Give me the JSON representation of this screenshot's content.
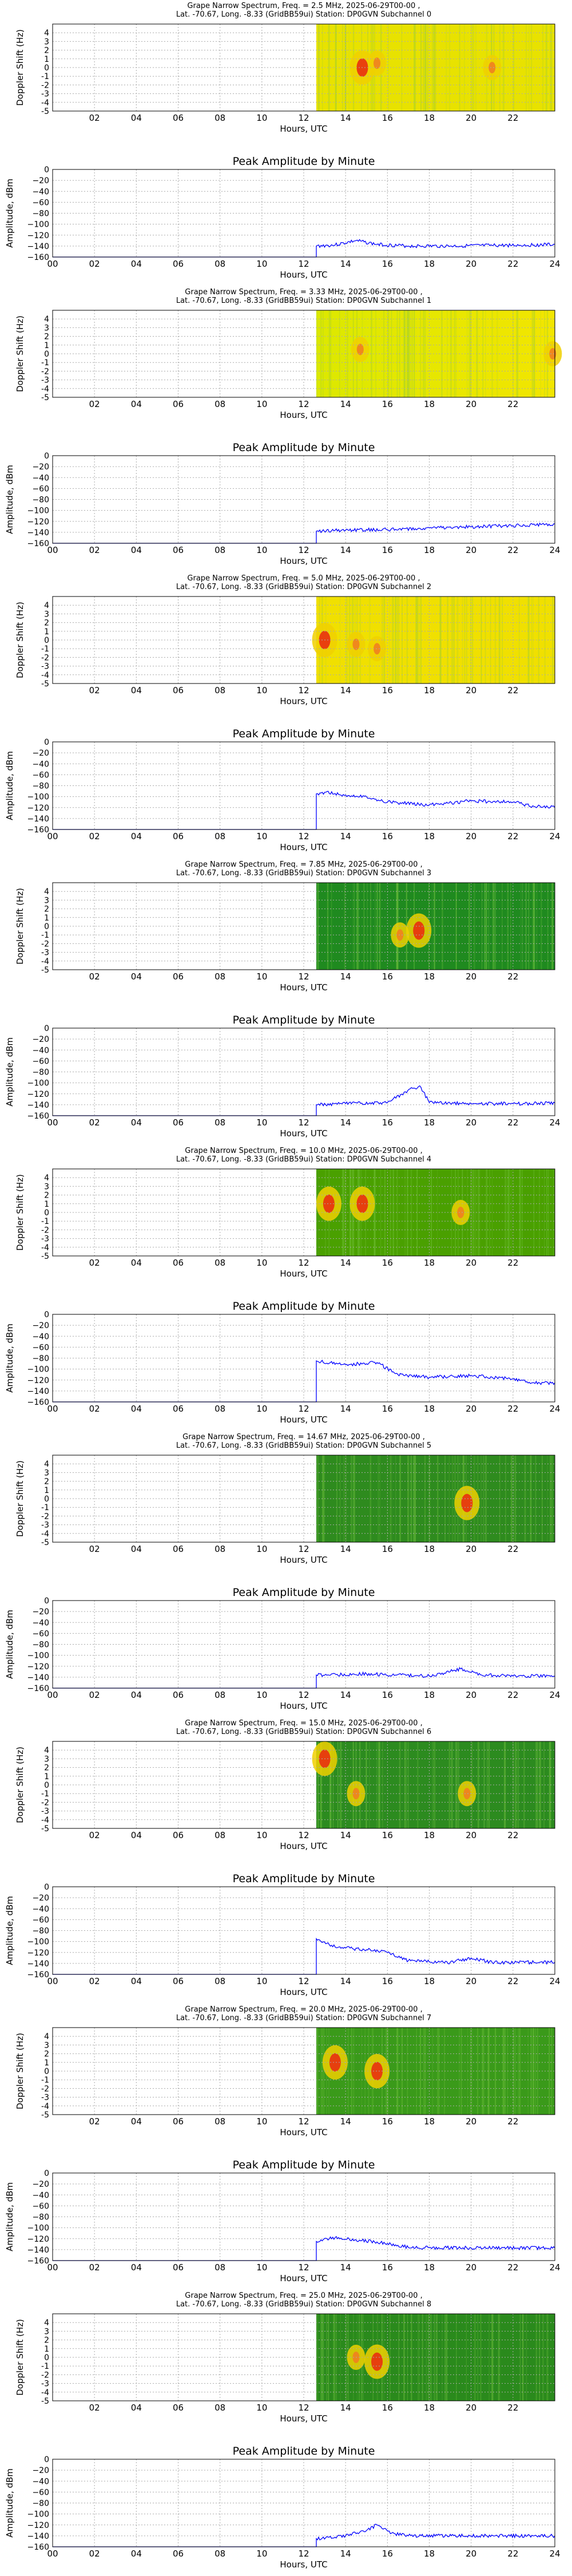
{
  "chart_data": [
    {
      "type": "heatmap",
      "title": "Grape Narrow Spectrum, Freq. = 2.5 MHz, 2025-06-29T00-00 ,",
      "subtitle": "Lat. -70.67, Long.  -8.33 (GridBB59ui) Station: DP0GVN Subchannel 0",
      "xlabel": "Hours, UTC",
      "ylabel": "Doppler Shift (Hz)",
      "xlim": [
        0,
        24
      ],
      "ylim": [
        -5,
        5
      ],
      "data_start_hour": 12.6,
      "hotspots": [
        {
          "hour": 14.8,
          "doppler": 0,
          "intensity": "high"
        },
        {
          "hour": 15.5,
          "doppler": 0.5,
          "intensity": "medium"
        },
        {
          "hour": 21,
          "doppler": 0,
          "intensity": "medium"
        }
      ]
    },
    {
      "type": "line",
      "title": "Peak Amplitude by Minute",
      "xlabel": "Hours, UTC",
      "ylabel": "Amplitude, dBm",
      "xlim": [
        0,
        24
      ],
      "ylim": [
        -160,
        0
      ],
      "x": [
        0,
        12.6,
        12.6,
        13.5,
        14.5,
        15.5,
        17,
        19,
        21,
        23,
        24
      ],
      "y": [
        -160,
        -160,
        -140,
        -138,
        -130,
        -137,
        -140,
        -140,
        -139,
        -138,
        -137
      ]
    },
    {
      "type": "heatmap",
      "title": "Grape Narrow Spectrum, Freq. = 3.33 MHz, 2025-06-29T00-00 ,",
      "subtitle": "Lat. -70.67, Long.  -8.33 (GridBB59ui) Station: DP0GVN Subchannel 1",
      "xlabel": "Hours, UTC",
      "ylabel": "Doppler Shift (Hz)",
      "xlim": [
        0,
        24
      ],
      "ylim": [
        -5,
        5
      ],
      "data_start_hour": 12.6,
      "hotspots": [
        {
          "hour": 14.7,
          "doppler": 0.5,
          "intensity": "medium"
        },
        {
          "hour": 23.9,
          "doppler": 0,
          "intensity": "medium"
        }
      ]
    },
    {
      "type": "line",
      "title": "Peak Amplitude by Minute",
      "xlabel": "Hours, UTC",
      "ylabel": "Amplitude, dBm",
      "xlim": [
        0,
        24
      ],
      "ylim": [
        -160,
        0
      ],
      "x": [
        0,
        12.6,
        12.6,
        14,
        16,
        18,
        20,
        22,
        24
      ],
      "y": [
        -160,
        -160,
        -138,
        -136,
        -135,
        -132,
        -130,
        -128,
        -125
      ]
    },
    {
      "type": "heatmap",
      "title": "Grape Narrow Spectrum, Freq. = 5.0 MHz, 2025-06-29T00-00 ,",
      "subtitle": "Lat. -70.67, Long.  -8.33 (GridBB59ui) Station: DP0GVN Subchannel 2",
      "xlabel": "Hours, UTC",
      "ylabel": "Doppler Shift (Hz)",
      "xlim": [
        0,
        24
      ],
      "ylim": [
        -5,
        5
      ],
      "data_start_hour": 12.6,
      "hotspots": [
        {
          "hour": 13,
          "doppler": 0,
          "intensity": "high"
        },
        {
          "hour": 14.5,
          "doppler": -0.5,
          "intensity": "medium"
        },
        {
          "hour": 15.5,
          "doppler": -1,
          "intensity": "medium"
        }
      ]
    },
    {
      "type": "line",
      "title": "Peak Amplitude by Minute",
      "xlabel": "Hours, UTC",
      "ylabel": "Amplitude, dBm",
      "xlim": [
        0,
        24
      ],
      "ylim": [
        -160,
        0
      ],
      "x": [
        0,
        12.6,
        12.6,
        13,
        14,
        15,
        16,
        18,
        20,
        22,
        23,
        24
      ],
      "y": [
        -160,
        -160,
        -95,
        -92,
        -97,
        -100,
        -110,
        -115,
        -108,
        -110,
        -118,
        -120
      ]
    },
    {
      "type": "heatmap",
      "title": "Grape Narrow Spectrum, Freq. = 7.85 MHz, 2025-06-29T00-00 ,",
      "subtitle": "Lat. -70.67, Long.  -8.33 (GridBB59ui) Station: DP0GVN Subchannel 3",
      "xlabel": "Hours, UTC",
      "ylabel": "Doppler Shift (Hz)",
      "xlim": [
        0,
        24
      ],
      "ylim": [
        -5,
        5
      ],
      "data_start_hour": 12.6,
      "hotspots": [
        {
          "hour": 16.6,
          "doppler": -1,
          "intensity": "medium"
        },
        {
          "hour": 17.5,
          "doppler": -0.5,
          "intensity": "high"
        }
      ]
    },
    {
      "type": "line",
      "title": "Peak Amplitude by Minute",
      "xlabel": "Hours, UTC",
      "ylabel": "Amplitude, dBm",
      "xlim": [
        0,
        24
      ],
      "ylim": [
        -160,
        0
      ],
      "x": [
        0,
        12.6,
        12.6,
        14,
        16,
        17.2,
        17.6,
        18,
        20,
        22,
        24
      ],
      "y": [
        -160,
        -160,
        -140,
        -138,
        -136,
        -110,
        -108,
        -136,
        -138,
        -138,
        -137
      ]
    },
    {
      "type": "heatmap",
      "title": "Grape Narrow Spectrum, Freq. = 10.0 MHz, 2025-06-29T00-00 ,",
      "subtitle": "Lat. -70.67, Long.  -8.33 (GridBB59ui) Station: DP0GVN Subchannel 4",
      "xlabel": "Hours, UTC",
      "ylabel": "Doppler Shift (Hz)",
      "xlim": [
        0,
        24
      ],
      "ylim": [
        -5,
        5
      ],
      "data_start_hour": 12.6,
      "hotspots": [
        {
          "hour": 13.2,
          "doppler": 1,
          "intensity": "high"
        },
        {
          "hour": 14.8,
          "doppler": 1,
          "intensity": "high"
        },
        {
          "hour": 19.5,
          "doppler": 0,
          "intensity": "medium"
        }
      ]
    },
    {
      "type": "line",
      "title": "Peak Amplitude by Minute",
      "xlabel": "Hours, UTC",
      "ylabel": "Amplitude, dBm",
      "xlim": [
        0,
        24
      ],
      "ylim": [
        -160,
        0
      ],
      "x": [
        0,
        12.6,
        12.6,
        14,
        15.5,
        16.5,
        18,
        20,
        22,
        23,
        24
      ],
      "y": [
        -160,
        -160,
        -85,
        -92,
        -88,
        -110,
        -115,
        -112,
        -118,
        -125,
        -125
      ]
    },
    {
      "type": "heatmap",
      "title": "Grape Narrow Spectrum, Freq. = 14.67 MHz, 2025-06-29T00-00 ,",
      "subtitle": "Lat. -70.67, Long.  -8.33 (GridBB59ui) Station: DP0GVN Subchannel 5",
      "xlabel": "Hours, UTC",
      "ylabel": "Doppler Shift (Hz)",
      "xlim": [
        0,
        24
      ],
      "ylim": [
        -5,
        5
      ],
      "data_start_hour": 12.6,
      "hotspots": [
        {
          "hour": 19.8,
          "doppler": -0.5,
          "intensity": "high"
        }
      ]
    },
    {
      "type": "line",
      "title": "Peak Amplitude by Minute",
      "xlabel": "Hours, UTC",
      "ylabel": "Amplitude, dBm",
      "xlim": [
        0,
        24
      ],
      "ylim": [
        -160,
        0
      ],
      "x": [
        0,
        12.6,
        12.6,
        15,
        18,
        19.5,
        20.5,
        22,
        24
      ],
      "y": [
        -160,
        -160,
        -136,
        -134,
        -138,
        -125,
        -136,
        -138,
        -138
      ]
    },
    {
      "type": "heatmap",
      "title": "Grape Narrow Spectrum, Freq. = 15.0 MHz, 2025-06-29T00-00 ,",
      "subtitle": "Lat. -70.67, Long.  -8.33 (GridBB59ui) Station: DP0GVN Subchannel 6",
      "xlabel": "Hours, UTC",
      "ylabel": "Doppler Shift (Hz)",
      "xlim": [
        0,
        24
      ],
      "ylim": [
        -5,
        5
      ],
      "data_start_hour": 12.6,
      "hotspots": [
        {
          "hour": 13,
          "doppler": 3,
          "intensity": "high"
        },
        {
          "hour": 14.5,
          "doppler": -1,
          "intensity": "medium"
        },
        {
          "hour": 19.8,
          "doppler": -1,
          "intensity": "medium"
        }
      ]
    },
    {
      "type": "line",
      "title": "Peak Amplitude by Minute",
      "xlabel": "Hours, UTC",
      "ylabel": "Amplitude, dBm",
      "xlim": [
        0,
        24
      ],
      "ylim": [
        -160,
        0
      ],
      "x": [
        0,
        12.6,
        12.6,
        13.5,
        15,
        16,
        17,
        19,
        20,
        21,
        24
      ],
      "y": [
        -160,
        -160,
        -95,
        -110,
        -115,
        -120,
        -135,
        -138,
        -130,
        -138,
        -138
      ]
    },
    {
      "type": "heatmap",
      "title": "Grape Narrow Spectrum, Freq. = 20.0 MHz, 2025-06-29T00-00 ,",
      "subtitle": "Lat. -70.67, Long.  -8.33 (GridBB59ui) Station: DP0GVN Subchannel 7",
      "xlabel": "Hours, UTC",
      "ylabel": "Doppler Shift (Hz)",
      "xlim": [
        0,
        24
      ],
      "ylim": [
        -5,
        5
      ],
      "data_start_hour": 12.6,
      "hotspots": [
        {
          "hour": 13.5,
          "doppler": 1,
          "intensity": "high"
        },
        {
          "hour": 15.5,
          "doppler": 0,
          "intensity": "high"
        }
      ]
    },
    {
      "type": "line",
      "title": "Peak Amplitude by Minute",
      "xlabel": "Hours, UTC",
      "ylabel": "Amplitude, dBm",
      "xlim": [
        0,
        24
      ],
      "ylim": [
        -160,
        0
      ],
      "x": [
        0,
        12.6,
        12.6,
        13.5,
        14.5,
        15.5,
        16.5,
        17,
        20,
        24
      ],
      "y": [
        -160,
        -160,
        -125,
        -118,
        -122,
        -126,
        -132,
        -136,
        -137,
        -137
      ]
    },
    {
      "type": "heatmap",
      "title": "Grape Narrow Spectrum, Freq. = 25.0 MHz, 2025-06-29T00-00 ,",
      "subtitle": "Lat. -70.67, Long.  -8.33 (GridBB59ui) Station: DP0GVN Subchannel 8",
      "xlabel": "Hours, UTC",
      "ylabel": "Doppler Shift (Hz)",
      "xlim": [
        0,
        24
      ],
      "ylim": [
        -5,
        5
      ],
      "data_start_hour": 12.6,
      "hotspots": [
        {
          "hour": 15.5,
          "doppler": -0.5,
          "intensity": "high"
        },
        {
          "hour": 14.5,
          "doppler": 0,
          "intensity": "medium"
        }
      ]
    },
    {
      "type": "line",
      "title": "Peak Amplitude by Minute",
      "xlabel": "Hours, UTC",
      "ylabel": "Amplitude, dBm",
      "xlim": [
        0,
        24
      ],
      "ylim": [
        -160,
        0
      ],
      "x": [
        0,
        12.6,
        12.6,
        14,
        15,
        15.5,
        16.2,
        17,
        20,
        24
      ],
      "y": [
        -160,
        -160,
        -145,
        -140,
        -130,
        -120,
        -135,
        -140,
        -140,
        -140
      ]
    }
  ],
  "axes": {
    "spectrum_xticks": [
      "02",
      "04",
      "06",
      "08",
      "10",
      "12",
      "14",
      "16",
      "18",
      "20",
      "22"
    ],
    "spectrum_yticks": [
      "4",
      "3",
      "2",
      "1",
      "0",
      "-1",
      "-2",
      "-3",
      "-4",
      "-5"
    ],
    "amp_xticks": [
      "00",
      "02",
      "04",
      "06",
      "08",
      "10",
      "12",
      "14",
      "16",
      "18",
      "20",
      "22",
      "24"
    ],
    "amp_yticks": [
      "0",
      "−20",
      "−40",
      "−60",
      "−80",
      "−100",
      "−120",
      "−140",
      "−160"
    ]
  },
  "colors": {
    "series_line": "#0000ff",
    "grid": "#b0b0b0",
    "spectrum_background": "#ffffff"
  }
}
